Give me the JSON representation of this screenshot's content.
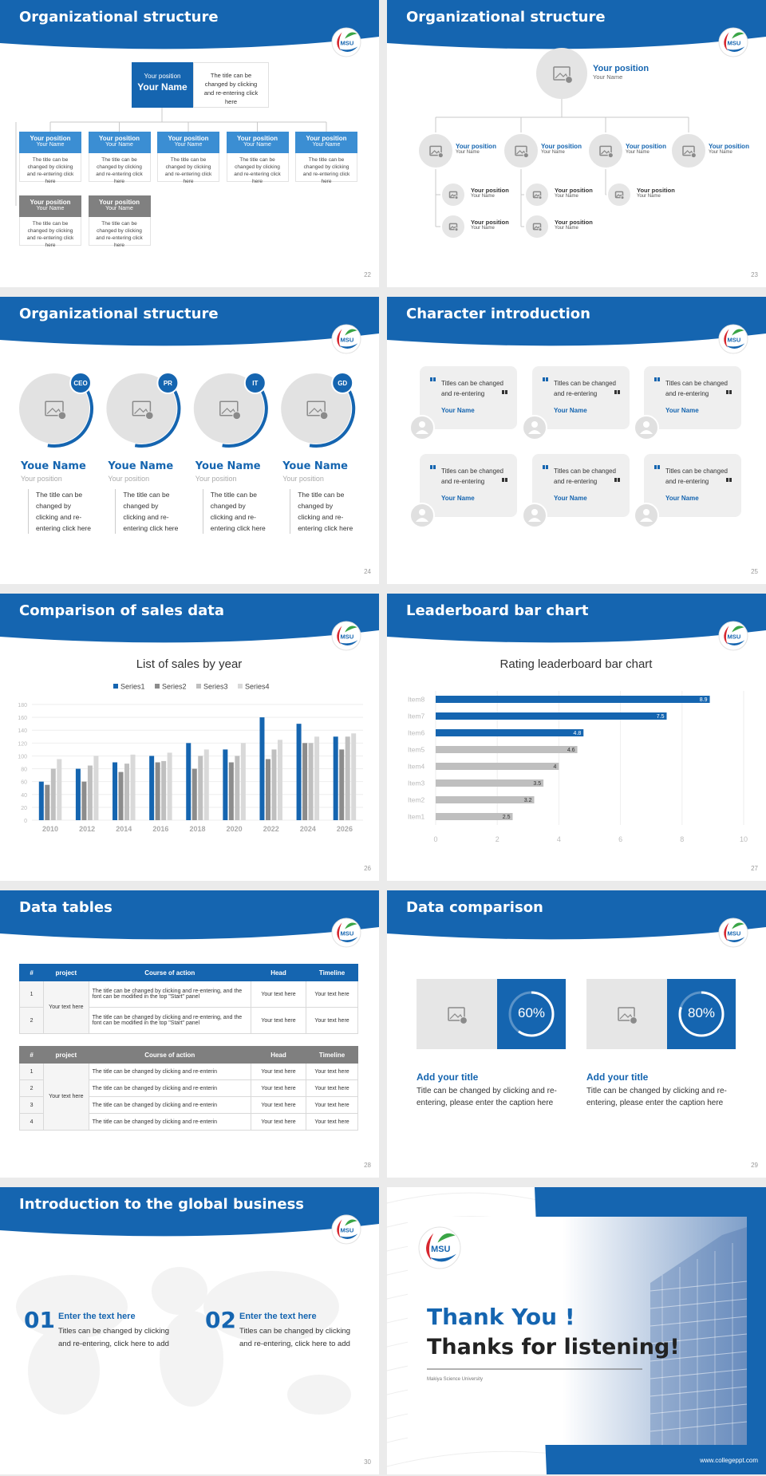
{
  "logo": "MSU",
  "slides": [
    {
      "title": "Organizational structure",
      "page": 22,
      "top": {
        "position": "Your position",
        "name": "Your Name",
        "note": "The title can be changed by clicking and re-entering click here"
      },
      "members": [
        {
          "position": "Your position",
          "name": "Your Name",
          "note": "The title can be changed by clicking and re-entering click here"
        },
        {
          "position": "Your position",
          "name": "Your Name",
          "note": "The title can be changed by clicking and re-entering click here"
        },
        {
          "position": "Your position",
          "name": "Your Name",
          "note": "The title can be changed by clicking and re-entering click here"
        },
        {
          "position": "Your position",
          "name": "Your Name",
          "note": "The title can be changed by clicking and re-entering click here"
        },
        {
          "position": "Your position",
          "name": "Your Name",
          "note": "The title can be changed by clicking and re-entering click here"
        },
        {
          "position": "Your position",
          "name": "Your Name",
          "note": "The title can be changed by clicking and re-entering click here"
        },
        {
          "position": "Your position",
          "name": "Your Name",
          "note": "The title can be changed by clicking and re-entering click here"
        }
      ]
    },
    {
      "title": "Organizational structure",
      "page": 23,
      "top": {
        "position": "Your position",
        "name": "Your Name"
      },
      "main": [
        {
          "position": "Your position",
          "name": "Your Name"
        },
        {
          "position": "Your position",
          "name": "Your Name"
        },
        {
          "position": "Your position",
          "name": "Your Name"
        },
        {
          "position": "Your position",
          "name": "Your Name"
        }
      ],
      "sub": [
        {
          "position": "Your position",
          "name": "Your Name"
        },
        {
          "position": "Your position",
          "name": "Your Name"
        },
        {
          "position": "Your position",
          "name": "Your Name"
        },
        {
          "position": "Your position",
          "name": "Your Name"
        },
        {
          "position": "Your position",
          "name": "Your Name"
        }
      ]
    },
    {
      "title": "Organizational structure",
      "page": 24,
      "people": [
        {
          "badge": "CEO",
          "name": "Youe Name",
          "position": "Your position",
          "note": "The title can be changed by clicking and re-entering click here"
        },
        {
          "badge": "PR",
          "name": "Youe Name",
          "position": "Your position",
          "note": "The title can be changed by clicking and re-entering click here"
        },
        {
          "badge": "IT",
          "name": "Youe Name",
          "position": "Your position",
          "note": "The title can be changed by clicking and re-entering click here"
        },
        {
          "badge": "GD",
          "name": "Youe Name",
          "position": "Your position",
          "note": "The title can be changed by clicking and re-entering click here"
        }
      ]
    },
    {
      "title": "Character introduction",
      "page": 25,
      "cards": [
        {
          "text": "Titles can be changed and re-entering",
          "name": "Your Name"
        },
        {
          "text": "Titles can be changed and re-entering",
          "name": "Your Name"
        },
        {
          "text": "Titles can be changed and re-entering",
          "name": "Your Name"
        },
        {
          "text": "Titles can be changed and re-entering",
          "name": "Your Name"
        },
        {
          "text": "Titles can be changed and re-entering",
          "name": "Your Name"
        },
        {
          "text": "Titles can be changed and re-entering",
          "name": "Your Name"
        }
      ]
    },
    {
      "title": "Comparison of sales data",
      "page": 26,
      "chart": {
        "type": "bar",
        "title": "List of sales by year",
        "categories": [
          "2010",
          "2012",
          "2014",
          "2016",
          "2018",
          "2020",
          "2022",
          "2024",
          "2026"
        ],
        "series": [
          {
            "name": "Series1",
            "color": "#1565b0",
            "values": [
              60,
              80,
              90,
              100,
              120,
              110,
              160,
              150,
              130
            ]
          },
          {
            "name": "Series2",
            "color": "#8c8c8c",
            "values": [
              55,
              60,
              75,
              90,
              80,
              90,
              95,
              120,
              110
            ]
          },
          {
            "name": "Series3",
            "color": "#bfbfbf",
            "values": [
              80,
              85,
              88,
              92,
              100,
              100,
              110,
              120,
              130
            ]
          },
          {
            "name": "Series4",
            "color": "#d9d9d9",
            "values": [
              95,
              100,
              102,
              105,
              110,
              120,
              125,
              130,
              135
            ]
          }
        ],
        "ylim": [
          0,
          180
        ],
        "yticks": [
          0,
          20,
          40,
          60,
          80,
          100,
          120,
          140,
          160,
          180
        ],
        "grid": true
      }
    },
    {
      "title": "Leaderboard bar chart",
      "page": 27,
      "chart": {
        "type": "bar",
        "title": "Rating leaderboard bar chart",
        "categories": [
          "Item1",
          "Item2",
          "Item3",
          "Item4",
          "Item5",
          "Item6",
          "Item7",
          "Item8"
        ],
        "values": [
          2.5,
          3.2,
          3.5,
          4,
          4.6,
          4.8,
          7.5,
          8.9
        ],
        "colors": [
          "#bfbfbf",
          "#bfbfbf",
          "#bfbfbf",
          "#bfbfbf",
          "#bfbfbf",
          "#1565b0",
          "#1565b0",
          "#1565b0"
        ],
        "xlim": [
          0,
          10
        ],
        "xticks": [
          0,
          2,
          4,
          6,
          8,
          10
        ],
        "grid": true
      }
    },
    {
      "title": "Data tables",
      "page": 28,
      "tables": [
        {
          "header": [
            "#",
            "project",
            "Course of action",
            "Head",
            "Timeline"
          ],
          "rows": [
            [
              1,
              "Your text here",
              "The title can be changed by clicking and re-entering, and the font can be modified in the top \"Start\" panel",
              "Your text here",
              "Your text here"
            ],
            [
              2,
              "The title can be changed by clicking and re-entering, and the font can be modified in the top \"Start\" panel",
              "Your text here",
              "Your text here"
            ]
          ]
        },
        {
          "header": [
            "#",
            "project",
            "Course of action",
            "Head",
            "Timeline"
          ],
          "rows": [
            [
              1,
              "Your text here",
              "The title can be changed by clicking and re-enterin",
              "Your text here",
              "Your text here"
            ],
            [
              2,
              "The title can be changed by clicking and re-enterin",
              "Your text here",
              "Your text here"
            ],
            [
              3,
              "The title can be changed by clicking and re-enterin",
              "Your text here",
              "Your text here"
            ],
            [
              4,
              "The title can be changed by clicking and re-enterin",
              "Your text here",
              "Your text here"
            ]
          ]
        }
      ]
    },
    {
      "title": "Data comparison",
      "page": 29,
      "items": [
        {
          "percent": {
            "value": 60,
            "label": "60%"
          },
          "title": "Add your title",
          "caption": "Title can be changed by clicking and re-entering, please enter the caption here"
        },
        {
          "percent": {
            "value": 80,
            "label": "80%"
          },
          "title": "Add your title",
          "caption": "Title can be changed by clicking and re-entering, please enter the caption here"
        }
      ]
    },
    {
      "title": "Introduction to the global business",
      "page": 30,
      "items": [
        {
          "number": "01",
          "title": "Enter the text here",
          "caption": "Titles can be changed by clicking and re-entering, click here to add"
        },
        {
          "number": "02",
          "title": "Enter the text here",
          "caption": "Titles can be changed by clicking and re-entering, click here to add"
        }
      ]
    },
    {
      "thanks": "Thank You !",
      "listening": "Thanks for listening!",
      "university": "Makiya Science University",
      "url": "www.collegeppt.com"
    }
  ]
}
